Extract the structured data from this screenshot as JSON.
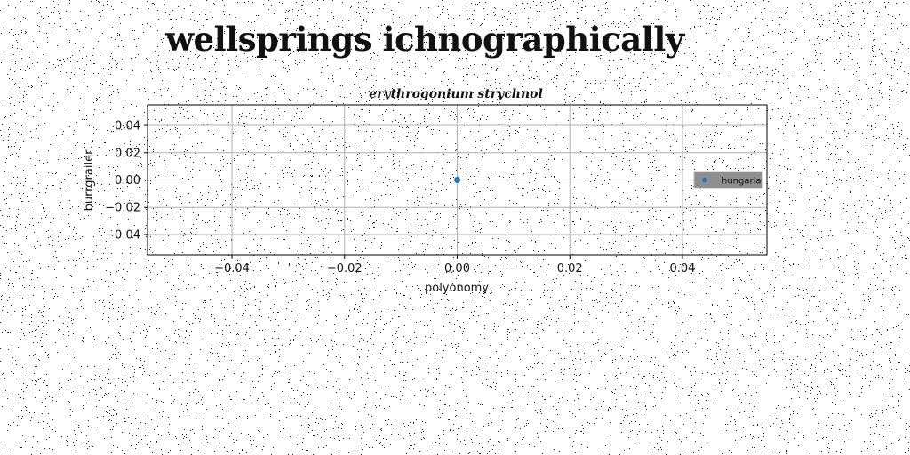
{
  "page": {
    "title": "wellsprings ichnographically"
  },
  "chart_data": {
    "type": "scatter",
    "title": "erythrogonium strychnol",
    "xlabel": "polyonomy",
    "ylabel": "burrgrailer",
    "xlim": [
      -0.055,
      0.055
    ],
    "ylim": [
      -0.055,
      0.055
    ],
    "xticks": [
      -0.04,
      -0.02,
      0.0,
      0.02,
      0.04
    ],
    "yticks": [
      -0.04,
      -0.02,
      0.0,
      0.02,
      0.04
    ],
    "xtick_labels": [
      "−0.04",
      "−0.02",
      "0.00",
      "0.02",
      "0.04"
    ],
    "ytick_labels": [
      "−0.04",
      "−0.02",
      "0.00",
      "0.02",
      "0.04"
    ],
    "grid": true,
    "legend_position": "right",
    "series": [
      {
        "name": "hungaria",
        "x": [
          0.0
        ],
        "y": [
          0.0
        ],
        "color": "#1f77b4"
      }
    ]
  }
}
